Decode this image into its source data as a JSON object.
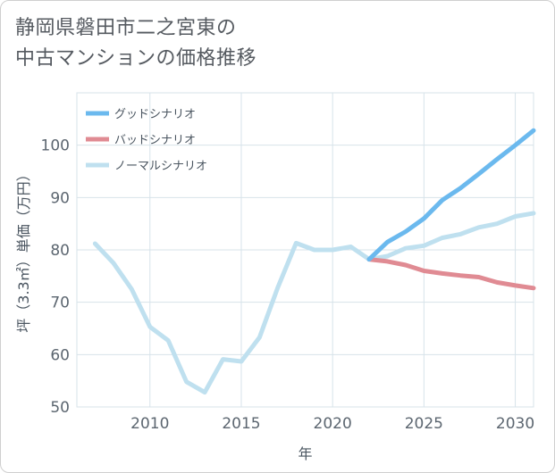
{
  "chart_data": {
    "type": "line",
    "title": [
      "静岡県磐田市二之宮東の",
      "中古マンションの価格推移"
    ],
    "xlabel": "年",
    "ylabel": "坪（3.3㎡）単価（万円）",
    "xlim": [
      2006,
      2031
    ],
    "ylim": [
      50,
      110
    ],
    "x_ticks": [
      2010,
      2015,
      2020,
      2025,
      2030
    ],
    "y_ticks": [
      50,
      60,
      70,
      80,
      90,
      100
    ],
    "grid": true,
    "legend_position": "top-left",
    "series": [
      {
        "name": "グッドシナリオ",
        "color": "#6bb9ee",
        "x": [
          2022,
          2023,
          2024,
          2025,
          2026,
          2027,
          2028,
          2029,
          2030,
          2031
        ],
        "values": [
          78.2,
          81.5,
          83.5,
          86,
          89.5,
          91.8,
          94.5,
          97.3,
          100,
          102.8
        ]
      },
      {
        "name": "バッドシナリオ",
        "color": "#e08b93",
        "x": [
          2022,
          2023,
          2024,
          2025,
          2026,
          2027,
          2028,
          2029,
          2030,
          2031
        ],
        "values": [
          78.2,
          77.8,
          77.1,
          76,
          75.5,
          75.1,
          74.8,
          73.8,
          73.2,
          72.7
        ]
      },
      {
        "name": "ノーマルシナリオ",
        "color": "#bfe0ef",
        "x": [
          2007,
          2008,
          2009,
          2010,
          2011,
          2012,
          2013,
          2014,
          2015,
          2016,
          2017,
          2018,
          2019,
          2020,
          2021,
          2022,
          2023,
          2024,
          2025,
          2026,
          2027,
          2028,
          2029,
          2030,
          2031
        ],
        "values": [
          81.2,
          77.5,
          72.5,
          65.3,
          62.7,
          54.8,
          52.8,
          59.1,
          58.7,
          63.3,
          72.8,
          81.3,
          80,
          80,
          80.6,
          78.2,
          78.8,
          80.3,
          80.8,
          82.3,
          83,
          84.3,
          85,
          86.4,
          87
        ]
      }
    ]
  }
}
